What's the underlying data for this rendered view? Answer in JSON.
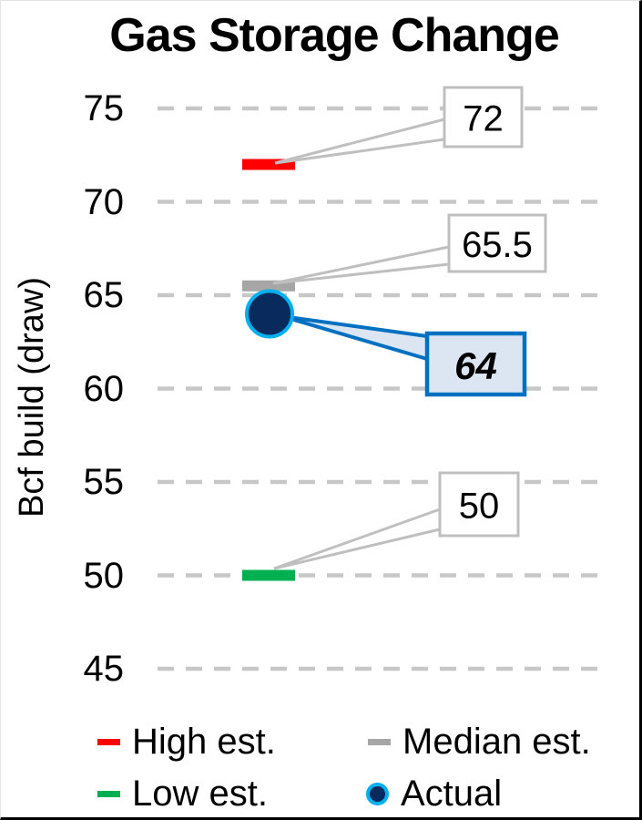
{
  "title": "Gas Storage Change",
  "chart_data": {
    "type": "scatter",
    "title": "Gas Storage Change",
    "xlabel": "",
    "ylabel": "Bcf build (draw)",
    "ylim": [
      42.5,
      77.5
    ],
    "yticks": [
      75,
      70,
      65,
      60,
      55,
      50,
      45
    ],
    "grid": "horizontal-dashed",
    "legend_position": "bottom",
    "series": [
      {
        "name": "High est.",
        "value": 72,
        "label": "72",
        "marker": "dash",
        "color": "#FF0000",
        "highlighted": false
      },
      {
        "name": "Median est.",
        "value": 65.5,
        "label": "65.5",
        "marker": "dash",
        "color": "#A6A6A6",
        "highlighted": false
      },
      {
        "name": "Actual",
        "value": 64,
        "label": "64",
        "marker": "circle",
        "color": "#082A5C",
        "outline": "#00B0F0",
        "highlighted": true
      },
      {
        "name": "Low est.",
        "value": 50,
        "label": "50",
        "marker": "dash",
        "color": "#00B050",
        "highlighted": false
      }
    ],
    "legend": {
      "items": [
        {
          "label": "High est.",
          "marker": "dash",
          "color": "#FF0000"
        },
        {
          "label": "Median est.",
          "marker": "dash",
          "color": "#A6A6A6"
        },
        {
          "label": "Low est.",
          "marker": "dash",
          "color": "#00B050"
        },
        {
          "label": "Actual",
          "marker": "circle",
          "color": "#082A5C",
          "outline": "#00B0F0"
        }
      ]
    },
    "colors": {
      "gridline": "#C7C7C7",
      "callout_border": "#BFBFBF",
      "callout_fill": "#FFFFFF",
      "highlight_border": "#0070C0",
      "highlight_fill": "#DCE6F2",
      "text": "#000000"
    }
  }
}
